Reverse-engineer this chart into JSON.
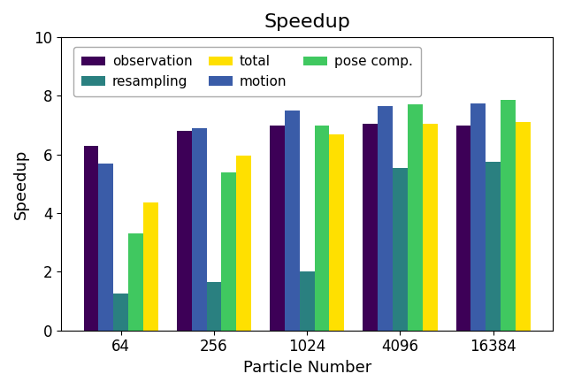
{
  "title": "Speedup",
  "xlabel": "Particle Number",
  "ylabel": "Speedup",
  "categories": [
    "64",
    "256",
    "1024",
    "4096",
    "16384"
  ],
  "bar_order": [
    "observation",
    "motion",
    "resampling",
    "pose comp.",
    "total"
  ],
  "series": {
    "observation": [
      6.3,
      6.8,
      7.0,
      7.05,
      7.0
    ],
    "motion": [
      5.7,
      6.9,
      7.5,
      7.65,
      7.75
    ],
    "resampling": [
      1.25,
      1.65,
      2.02,
      5.55,
      5.75
    ],
    "pose comp.": [
      3.3,
      5.4,
      7.0,
      7.7,
      7.85
    ],
    "total": [
      4.35,
      5.95,
      6.68,
      7.05,
      7.1
    ]
  },
  "colors": {
    "observation": "#3d0057",
    "motion": "#3a5ca8",
    "resampling": "#2a8080",
    "pose comp.": "#40c860",
    "total": "#ffe000"
  },
  "ylim": [
    0,
    10
  ],
  "yticks": [
    0,
    2,
    4,
    6,
    8,
    10
  ],
  "legend_order": [
    "observation",
    "resampling",
    "total",
    "motion",
    "pose comp."
  ],
  "bar_width": 0.16,
  "figsize": [
    6.4,
    4.4
  ],
  "dpi": 100
}
